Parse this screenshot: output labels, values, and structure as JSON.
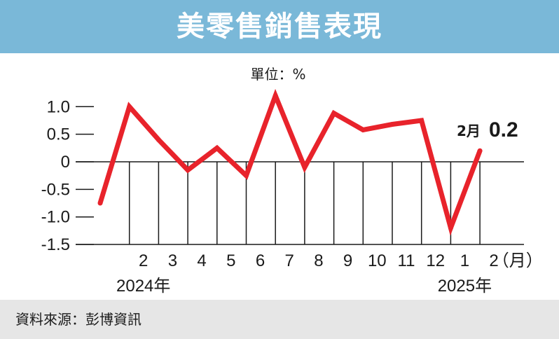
{
  "header": {
    "title": "美零售銷售表現"
  },
  "footer": {
    "source": "資料來源：彭博資訊"
  },
  "chart_data": {
    "type": "line",
    "unit_label": "單位：%",
    "x": [
      "1",
      "2",
      "3",
      "4",
      "5",
      "6",
      "7",
      "8",
      "9",
      "10",
      "11",
      "12",
      "1",
      "2"
    ],
    "x_tick_labels": [
      "2",
      "3",
      "4",
      "5",
      "6",
      "7",
      "8",
      "9",
      "10",
      "11",
      "12",
      "1",
      "2"
    ],
    "x_axis_unit": "（月）",
    "years": [
      {
        "label": "2024年",
        "start_index": 1
      },
      {
        "label": "2025年",
        "start_index": 12
      }
    ],
    "series": [
      {
        "values": [
          -0.75,
          1.0,
          0.4,
          -0.15,
          0.25,
          -0.25,
          1.2,
          -0.1,
          0.88,
          0.58,
          0.68,
          0.75,
          -1.2,
          0.2
        ],
        "color": "#e8232b"
      }
    ],
    "y_ticks": [
      1.0,
      0.5,
      0,
      -0.5,
      -1.0,
      -1.5
    ],
    "y_tick_labels": [
      "1.0",
      "0.5",
      "0",
      "-0.5",
      "-1.0",
      "-1.5"
    ],
    "ylim": [
      -1.5,
      1.2
    ],
    "annotation": {
      "month_label": "2月",
      "value_label": "0.2"
    }
  }
}
